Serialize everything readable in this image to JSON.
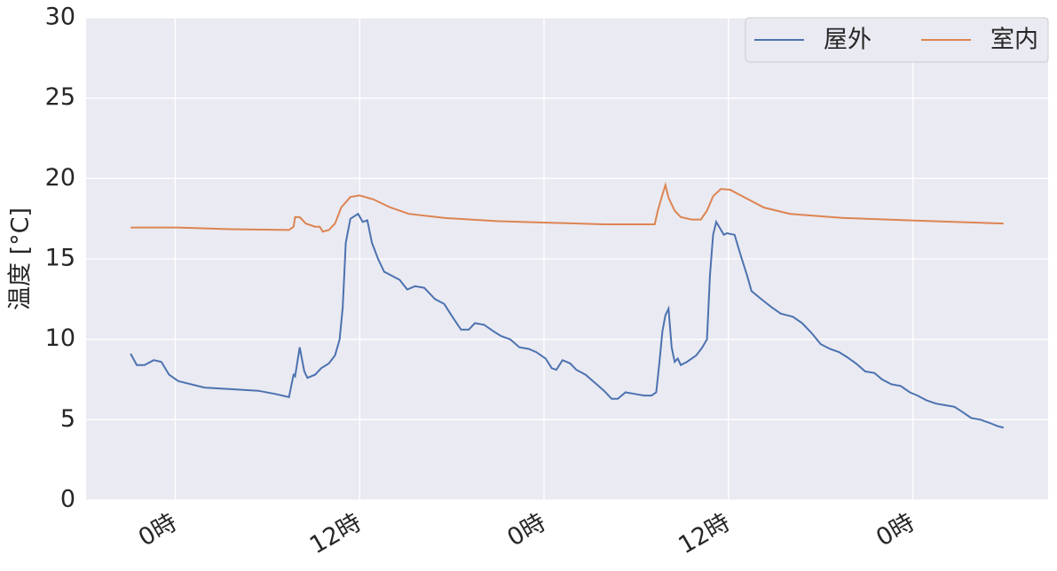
{
  "chart_data": {
    "type": "line",
    "y_label": "温度 [°C]",
    "xlim": [
      -5.8,
      56.8
    ],
    "ylim": [
      0,
      30
    ],
    "xticks": [
      {
        "value": 0,
        "label": "0時"
      },
      {
        "value": 12,
        "label": "12時"
      },
      {
        "value": 24,
        "label": "0時"
      },
      {
        "value": 36,
        "label": "12時"
      },
      {
        "value": 48,
        "label": "0時"
      }
    ],
    "yticks": [
      0,
      5,
      10,
      15,
      20,
      25,
      30
    ],
    "grid": true,
    "legend": "upper right",
    "legend_columns": 2,
    "series": [
      {
        "name": "屋外",
        "color": "#4c72b0",
        "x": [
          -2.9,
          -2.5,
          -2.0,
          -1.4,
          -0.9,
          -0.4,
          0.2,
          1.9,
          3.6,
          5.4,
          6.5,
          7.4,
          7.7,
          7.8,
          8.1,
          8.4,
          8.6,
          9.1,
          9.5,
          10.0,
          10.4,
          10.7,
          10.9,
          11.1,
          11.4,
          11.9,
          12.2,
          12.5,
          12.8,
          13.2,
          13.6,
          14.0,
          14.6,
          15.1,
          15.6,
          16.2,
          16.9,
          17.5,
          18.1,
          18.6,
          19.1,
          19.5,
          20.1,
          20.7,
          21.2,
          21.8,
          22.4,
          23.0,
          23.5,
          24.1,
          24.5,
          24.8,
          25.2,
          25.7,
          26.1,
          26.7,
          27.3,
          27.9,
          28.4,
          28.8,
          29.3,
          29.9,
          30.5,
          31.0,
          31.3,
          31.5,
          31.7,
          31.9,
          32.1,
          32.3,
          32.5,
          32.7,
          32.9,
          33.3,
          33.9,
          34.3,
          34.6,
          34.8,
          35.0,
          35.2,
          35.7,
          35.9,
          36.4,
          36.8,
          37.2,
          37.5,
          38.0,
          38.4,
          38.8,
          39.4,
          40.2,
          40.8,
          41.4,
          42.0,
          42.6,
          43.2,
          43.7,
          44.3,
          44.9,
          45.5,
          46.0,
          46.6,
          47.2,
          47.8,
          48.3,
          48.9,
          49.5,
          50.1,
          50.7,
          51.2,
          51.8,
          52.4,
          53.0,
          53.5,
          53.9
        ],
        "values": [
          9.1,
          8.4,
          8.4,
          8.7,
          8.6,
          7.8,
          7.4,
          7.0,
          6.9,
          6.8,
          6.6,
          6.4,
          7.8,
          7.7,
          9.5,
          8.0,
          7.6,
          7.8,
          8.2,
          8.5,
          9.0,
          10.0,
          12.0,
          16.0,
          17.5,
          17.8,
          17.3,
          17.4,
          16.0,
          15.0,
          14.2,
          14.0,
          13.7,
          13.1,
          13.3,
          13.2,
          12.5,
          12.2,
          11.3,
          10.6,
          10.6,
          11.0,
          10.9,
          10.5,
          10.2,
          10.0,
          9.5,
          9.4,
          9.2,
          8.8,
          8.2,
          8.1,
          8.7,
          8.5,
          8.1,
          7.8,
          7.3,
          6.8,
          6.3,
          6.3,
          6.7,
          6.6,
          6.5,
          6.5,
          6.7,
          8.5,
          10.5,
          11.5,
          11.9,
          9.5,
          8.6,
          8.8,
          8.4,
          8.6,
          9.0,
          9.5,
          10.0,
          14.0,
          16.5,
          17.3,
          16.5,
          16.6,
          16.5,
          15.2,
          14.0,
          13.0,
          12.6,
          12.3,
          12.0,
          11.6,
          11.4,
          11.0,
          10.4,
          9.7,
          9.4,
          9.2,
          8.9,
          8.5,
          8.0,
          7.9,
          7.5,
          7.2,
          7.1,
          6.7,
          6.5,
          6.2,
          6.0,
          5.9,
          5.8,
          5.5,
          5.1,
          5.0,
          4.8,
          4.6,
          4.5
        ]
      },
      {
        "name": "室内",
        "color": "#dd8452",
        "x": [
          -2.9,
          0.2,
          3.6,
          7.4,
          7.7,
          7.8,
          8.1,
          8.5,
          9.1,
          9.4,
          9.6,
          10.0,
          10.4,
          10.8,
          11.4,
          12.0,
          12.9,
          14.0,
          15.2,
          17.5,
          20.9,
          24.4,
          27.9,
          31.2,
          31.4,
          31.7,
          31.9,
          32.1,
          32.5,
          32.9,
          33.6,
          34.2,
          34.6,
          35.0,
          35.5,
          36.1,
          37.1,
          38.3,
          40.0,
          43.4,
          49.2,
          53.9
        ],
        "values": [
          16.95,
          16.95,
          16.85,
          16.8,
          17.0,
          17.6,
          17.6,
          17.2,
          17.0,
          17.0,
          16.7,
          16.8,
          17.2,
          18.2,
          18.85,
          18.95,
          18.7,
          18.2,
          17.8,
          17.55,
          17.35,
          17.25,
          17.15,
          17.15,
          18.0,
          19.0,
          19.6,
          18.8,
          18.0,
          17.6,
          17.45,
          17.45,
          18.0,
          18.9,
          19.35,
          19.3,
          18.8,
          18.2,
          17.8,
          17.55,
          17.35,
          17.2
        ]
      }
    ]
  }
}
